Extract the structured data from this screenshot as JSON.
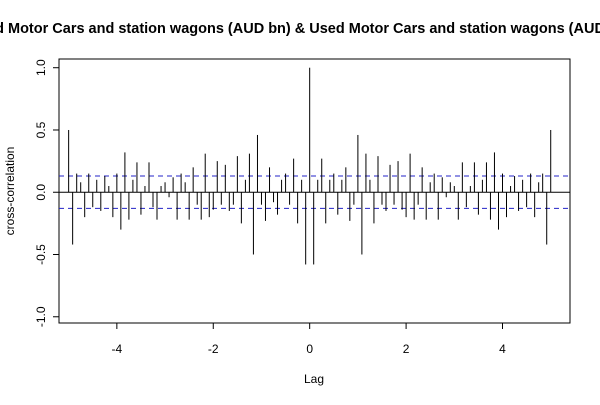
{
  "chart_data": {
    "type": "bar",
    "title": "Used Motor Cars and station wagons (AUD bn) & Used Motor Cars and station wagons (AUD bn)",
    "xlabel": "Lag",
    "ylabel": "cross-correlation",
    "xlim": [
      -5.2,
      5.4
    ],
    "ylim": [
      -1.05,
      1.07
    ],
    "xticks": [
      -4,
      -2,
      0,
      2,
      4
    ],
    "xtick_labels": [
      "-4",
      "-2",
      "0",
      "2",
      "4"
    ],
    "yticks": [
      -1.0,
      -0.5,
      0.0,
      0.5,
      1.0
    ],
    "ytick_labels": [
      "-1.0",
      "-0.5",
      "0.0",
      "0.5",
      "1.0"
    ],
    "confidence_limit": 0.13,
    "confidence_color": "#2323c8",
    "zero_line": true,
    "grid": false,
    "lag": [
      -5.0,
      -4.917,
      -4.833,
      -4.75,
      -4.667,
      -4.583,
      -4.5,
      -4.417,
      -4.333,
      -4.25,
      -4.167,
      -4.083,
      -4.0,
      -3.917,
      -3.833,
      -3.75,
      -3.667,
      -3.583,
      -3.5,
      -3.417,
      -3.333,
      -3.25,
      -3.167,
      -3.083,
      -3.0,
      -2.917,
      -2.833,
      -2.75,
      -2.667,
      -2.583,
      -2.5,
      -2.417,
      -2.333,
      -2.25,
      -2.167,
      -2.083,
      -2.0,
      -1.917,
      -1.833,
      -1.75,
      -1.667,
      -1.583,
      -1.5,
      -1.417,
      -1.333,
      -1.25,
      -1.167,
      -1.083,
      -1.0,
      -0.917,
      -0.833,
      -0.75,
      -0.667,
      -0.583,
      -0.5,
      -0.417,
      -0.333,
      -0.25,
      -0.167,
      -0.083,
      0.0,
      0.083,
      0.167,
      0.25,
      0.333,
      0.417,
      0.5,
      0.583,
      0.667,
      0.75,
      0.833,
      0.917,
      1.0,
      1.083,
      1.167,
      1.25,
      1.333,
      1.417,
      1.5,
      1.583,
      1.667,
      1.75,
      1.833,
      1.917,
      2.0,
      2.083,
      2.167,
      2.25,
      2.333,
      2.417,
      2.5,
      2.583,
      2.667,
      2.75,
      2.833,
      2.917,
      3.0,
      3.083,
      3.167,
      3.25,
      3.333,
      3.417,
      3.5,
      3.583,
      3.667,
      3.75,
      3.833,
      3.917,
      4.0,
      4.083,
      4.167,
      4.25,
      4.333,
      4.417,
      4.5,
      4.583,
      4.667,
      4.75,
      4.833,
      4.917,
      5.0
    ],
    "acf": [
      0.5,
      -0.42,
      0.15,
      0.08,
      -0.2,
      0.15,
      -0.12,
      0.1,
      -0.15,
      0.13,
      0.05,
      -0.2,
      0.15,
      -0.3,
      0.32,
      -0.22,
      0.1,
      0.24,
      -0.18,
      0.05,
      0.24,
      -0.12,
      -0.22,
      0.05,
      0.08,
      -0.04,
      0.12,
      -0.22,
      0.15,
      0.08,
      -0.22,
      0.2,
      -0.1,
      -0.22,
      0.31,
      -0.2,
      -0.14,
      0.25,
      -0.1,
      0.22,
      -0.15,
      -0.1,
      0.29,
      -0.25,
      0.1,
      0.31,
      -0.5,
      0.46,
      -0.1,
      -0.23,
      0.2,
      -0.08,
      -0.18,
      0.1,
      0.15,
      -0.1,
      0.27,
      -0.25,
      0.1,
      -0.58,
      1.0,
      -0.58,
      0.1,
      0.27,
      -0.25,
      0.1,
      0.15,
      -0.18,
      0.1,
      0.2,
      -0.23,
      -0.1,
      0.46,
      -0.5,
      0.31,
      0.1,
      -0.25,
      0.29,
      -0.1,
      -0.15,
      0.22,
      -0.1,
      0.25,
      -0.14,
      -0.2,
      0.31,
      -0.22,
      -0.1,
      0.2,
      -0.22,
      0.08,
      0.15,
      -0.22,
      0.12,
      -0.04,
      0.08,
      0.05,
      -0.22,
      0.24,
      -0.12,
      0.05,
      0.24,
      -0.18,
      0.1,
      0.24,
      -0.22,
      0.32,
      -0.3,
      0.15,
      -0.2,
      0.05,
      0.13,
      -0.15,
      0.1,
      -0.12,
      0.15,
      -0.2,
      0.08,
      0.15,
      -0.42,
      0.5
    ]
  }
}
